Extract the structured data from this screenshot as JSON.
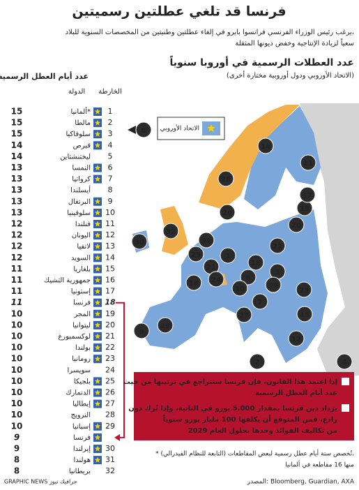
{
  "header": {
    "title": "فرنسا قد تلغي عطلتين رسميتين",
    "subtitle_lines": [
      "يرغب رئيس الوزراء الفرنسي فرانسوا بايرو في إلغاء عطلتين وطنيتين من المخصصات السنوية للبلاد،",
      "سعياً لزيادة الإنتاجية وخفض ديونها المثقلة"
    ]
  },
  "map": {
    "title": "عدد العطلات الرسمية في أوروبا سنوياً",
    "subtitle": "(الاتحاد الأوروبي ودول أوروبية مختارة أخرى)",
    "legend": "الاتحاد الأوروبي"
  },
  "table": {
    "headers": {
      "days": "عدد أيام العطل الرسمية",
      "country": "الدولة",
      "map": "الخارطة"
    },
    "rows": [
      {
        "map": 1,
        "country": "ألمانيا*",
        "days": 15,
        "eu": true
      },
      {
        "map": 2,
        "country": "مالطا",
        "days": 15,
        "eu": true
      },
      {
        "map": 3,
        "country": "سلوفاكيا",
        "days": 15,
        "eu": true
      },
      {
        "map": 4,
        "country": "قبرص",
        "days": 14,
        "eu": true
      },
      {
        "map": 5,
        "country": "ليختنشتاين",
        "days": 14,
        "eu": false
      },
      {
        "map": 6,
        "country": "النمسا",
        "days": 13,
        "eu": true
      },
      {
        "map": 7,
        "country": "كرواتيا",
        "days": 13,
        "eu": true
      },
      {
        "map": 8,
        "country": "أيسلندا",
        "days": 13,
        "eu": false
      },
      {
        "map": 9,
        "country": "البرتغال",
        "days": 13,
        "eu": true
      },
      {
        "map": 10,
        "country": "سلوفينيا",
        "days": 13,
        "eu": true
      },
      {
        "map": 11,
        "country": "فنلندا",
        "days": 12,
        "eu": true
      },
      {
        "map": 12,
        "country": "اليونان",
        "days": 12,
        "eu": true
      },
      {
        "map": 13,
        "country": "لاتفيا",
        "days": 12,
        "eu": true
      },
      {
        "map": 14,
        "country": "السويد",
        "days": 12,
        "eu": true
      },
      {
        "map": 15,
        "country": "بلغاريا",
        "days": 11,
        "eu": true
      },
      {
        "map": 16,
        "country": "جمهورية التشيك",
        "days": 11,
        "eu": true
      },
      {
        "map": 17,
        "country": "إستونيا",
        "days": 11,
        "eu": true
      },
      {
        "map": 18,
        "country": "فرنسا",
        "days": 11,
        "eu": true,
        "color": "#c8102e"
      },
      {
        "map": 19,
        "country": "المجر",
        "days": 10,
        "eu": true
      },
      {
        "map": 20,
        "country": "ليتوانيا",
        "days": 10,
        "eu": true
      },
      {
        "map": 21,
        "country": "لوكسمبورغ",
        "days": 10,
        "eu": true
      },
      {
        "map": 22,
        "country": "بولندا",
        "days": 10,
        "eu": true
      },
      {
        "map": 23,
        "country": "رومانيا",
        "days": 10,
        "eu": true
      },
      {
        "map": 24,
        "country": "سويسرا",
        "days": 10,
        "eu": false
      },
      {
        "map": 25,
        "country": "بلجيكا",
        "days": 10,
        "eu": true
      },
      {
        "map": 26,
        "country": "الدنمارك",
        "days": 10,
        "eu": true
      },
      {
        "map": 27,
        "country": "إيطاليا",
        "days": 10,
        "eu": true
      },
      {
        "map": 28,
        "country": "النرويج",
        "days": 10,
        "eu": false
      },
      {
        "map": 29,
        "country": "إسبانيا",
        "days": 10,
        "eu": true
      },
      {
        "map": null,
        "country": "فرنسا",
        "days": 9,
        "eu": true,
        "color": "#8e6aa8"
      },
      {
        "map": 30,
        "country": "إيرلندا",
        "days": 9,
        "eu": true
      },
      {
        "map": 31,
        "country": "هولندا",
        "days": 8,
        "eu": true
      },
      {
        "map": 32,
        "country": "بريطانيا",
        "days": 8,
        "eu": false
      }
    ]
  },
  "notes": [
    [
      "إذا اعتمد هذا القانون، فإن فرنسا ستتراجع في ترتيبها من حيث",
      "عدد أيام العطل الرسمية"
    ],
    [
      "يزداد دين فرنسا بمقدار 5.000 يورو في الثانية، وإذا تُرك دون",
      "رادع، فمن المتوقع أن يكلفها 100 مليار يورو سنوياً",
      "من تكاليف الفوائد وحدها بحلول العام 2029"
    ]
  ],
  "footnote": [
    "* تُخصص ستة أيام عطل رسمية لبعض المقاطعات (التابعة للنظام الفيدرالي)،",
    "منها 16 مقاطعة في ألمانيا"
  ],
  "source": "المصدر: Bloomberg, Guardian, AXA",
  "credit": "GRAPHIC NEWS جرافيك نيوز"
}
